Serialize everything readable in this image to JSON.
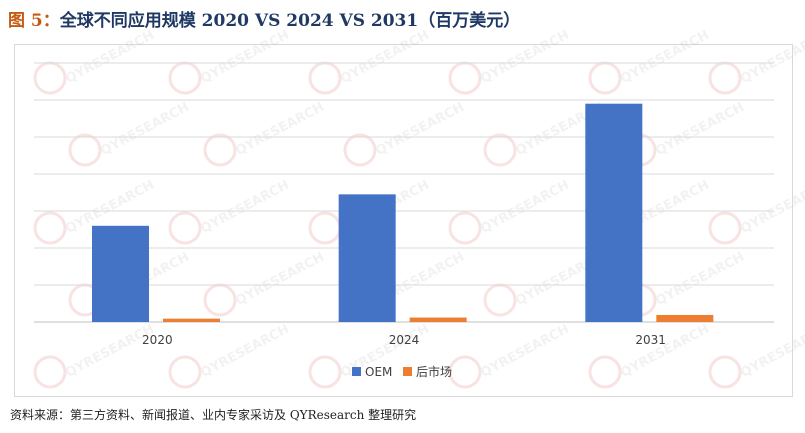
{
  "figure": {
    "label": "图 5：",
    "title": "全球不同应用规模 2020 VS 2024 VS 2031（百万美元）"
  },
  "source": "资料来源：第三方资料、新闻报道、业内专家采访及 QYResearch 整理研究",
  "watermark": "QYRESEARCH",
  "chart_data": {
    "type": "bar",
    "title": "",
    "xlabel": "",
    "ylabel": "",
    "categories": [
      "2020",
      "2024",
      "2031"
    ],
    "series": [
      {
        "name": "OEM",
        "color": "#4472c4",
        "values": [
          26,
          34.5,
          59
        ]
      },
      {
        "name": "后市场",
        "color": "#ed7d31",
        "values": [
          0.9,
          1.2,
          1.9
        ]
      }
    ],
    "ylim": [
      0,
      70
    ],
    "y_grid_step": 10,
    "y_tick_labels_shown": false,
    "grid": true,
    "legend": "bottom-center"
  }
}
